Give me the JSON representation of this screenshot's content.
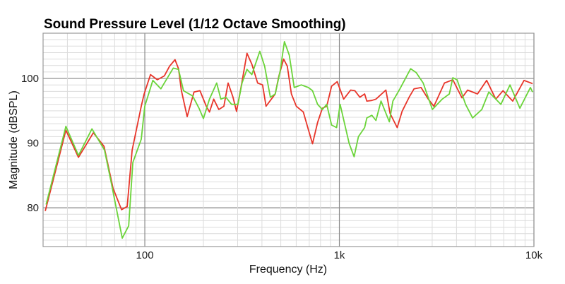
{
  "chart_data": {
    "type": "line",
    "title": "Sound Pressure Level (1/12 Octave Smoothing)",
    "xlabel": "Frequency (Hz)",
    "ylabel": "Magnitude (dBSPL)",
    "xscale": "log",
    "xlim": [
      30,
      10000
    ],
    "ylim": [
      74,
      107
    ],
    "grid": true,
    "x_ticks": [
      {
        "value": 100,
        "label": "100"
      },
      {
        "value": 1000,
        "label": "1k"
      },
      {
        "value": 10000,
        "label": "10k"
      }
    ],
    "y_ticks": [
      {
        "value": 80,
        "label": "80"
      },
      {
        "value": 90,
        "label": "90"
      },
      {
        "value": 100,
        "label": "100"
      }
    ],
    "series": [
      {
        "name": "red",
        "color": "#e8352a",
        "points": [
          [
            30.8,
            79.5
          ],
          [
            39.3,
            92.0
          ],
          [
            45.6,
            87.8
          ],
          [
            54.4,
            91.6
          ],
          [
            61.7,
            89.5
          ],
          [
            68.7,
            83.0
          ],
          [
            75.9,
            79.7
          ],
          [
            81.2,
            80.2
          ],
          [
            86.1,
            88.9
          ],
          [
            95.9,
            95.7
          ],
          [
            99.2,
            97.6
          ],
          [
            107,
            100.6
          ],
          [
            116,
            99.8
          ],
          [
            126,
            100.4
          ],
          [
            134,
            101.9
          ],
          [
            143,
            102.9
          ],
          [
            149,
            101.5
          ],
          [
            154,
            98.2
          ],
          [
            165,
            94.1
          ],
          [
            179,
            97.9
          ],
          [
            192,
            98.1
          ],
          [
            207,
            95.7
          ],
          [
            215,
            94.8
          ],
          [
            226,
            96.8
          ],
          [
            240,
            95.2
          ],
          [
            255,
            95.7
          ],
          [
            268,
            99.3
          ],
          [
            284,
            97.1
          ],
          [
            296,
            94.9
          ],
          [
            314,
            99.0
          ],
          [
            335,
            103.9
          ],
          [
            355,
            102.2
          ],
          [
            380,
            99.3
          ],
          [
            403,
            99.0
          ],
          [
            420,
            95.7
          ],
          [
            442,
            96.6
          ],
          [
            468,
            97.6
          ],
          [
            488,
            100.3
          ],
          [
            517,
            103.0
          ],
          [
            540,
            101.9
          ],
          [
            567,
            97.6
          ],
          [
            601,
            95.7
          ],
          [
            653,
            94.8
          ],
          [
            693,
            92.1
          ],
          [
            728,
            89.9
          ],
          [
            773,
            93.2
          ],
          [
            818,
            95.4
          ],
          [
            861,
            95.7
          ],
          [
            912,
            98.8
          ],
          [
            975,
            99.5
          ],
          [
            1052,
            96.8
          ],
          [
            1143,
            98.2
          ],
          [
            1202,
            98.1
          ],
          [
            1274,
            97.1
          ],
          [
            1349,
            97.6
          ],
          [
            1384,
            96.5
          ],
          [
            1468,
            96.6
          ],
          [
            1542,
            96.8
          ],
          [
            1734,
            98.2
          ],
          [
            1822,
            94.6
          ],
          [
            1982,
            92.4
          ],
          [
            2100,
            94.9
          ],
          [
            2284,
            97.1
          ],
          [
            2421,
            98.4
          ],
          [
            2630,
            98.6
          ],
          [
            2864,
            96.8
          ],
          [
            3062,
            95.7
          ],
          [
            3467,
            99.3
          ],
          [
            3830,
            99.8
          ],
          [
            4266,
            97.0
          ],
          [
            4560,
            98.2
          ],
          [
            5129,
            97.6
          ],
          [
            5715,
            99.7
          ],
          [
            6368,
            96.8
          ],
          [
            6934,
            98.1
          ],
          [
            7780,
            96.5
          ],
          [
            8892,
            99.7
          ],
          [
            9840,
            99.2
          ]
        ]
      },
      {
        "name": "green",
        "color": "#6bd43a",
        "points": [
          [
            31.1,
            80.5
          ],
          [
            39.3,
            92.6
          ],
          [
            45.6,
            88.1
          ],
          [
            53.5,
            92.2
          ],
          [
            62.1,
            88.9
          ],
          [
            67.0,
            84.1
          ],
          [
            72.8,
            78.6
          ],
          [
            76.6,
            75.3
          ],
          [
            82.6,
            77.2
          ],
          [
            86.8,
            87.0
          ],
          [
            95.9,
            90.6
          ],
          [
            100,
            95.7
          ],
          [
            110,
            99.7
          ],
          [
            121,
            98.4
          ],
          [
            140,
            101.6
          ],
          [
            149,
            101.4
          ],
          [
            158,
            98.1
          ],
          [
            176,
            97.3
          ],
          [
            190,
            95.4
          ],
          [
            200,
            93.8
          ],
          [
            215,
            96.8
          ],
          [
            234,
            99.3
          ],
          [
            246,
            96.8
          ],
          [
            261,
            97.1
          ],
          [
            279,
            96.0
          ],
          [
            301,
            96.0
          ],
          [
            316,
            99.3
          ],
          [
            335,
            101.4
          ],
          [
            355,
            100.6
          ],
          [
            390,
            104.2
          ],
          [
            413,
            101.9
          ],
          [
            442,
            97.1
          ],
          [
            468,
            97.6
          ],
          [
            496,
            101.1
          ],
          [
            522,
            105.7
          ],
          [
            553,
            103.6
          ],
          [
            586,
            98.6
          ],
          [
            637,
            99.0
          ],
          [
            693,
            98.6
          ],
          [
            728,
            98.1
          ],
          [
            773,
            96.0
          ],
          [
            818,
            95.2
          ],
          [
            861,
            96.0
          ],
          [
            912,
            92.8
          ],
          [
            968,
            92.4
          ],
          [
            1009,
            96.0
          ],
          [
            1060,
            93.2
          ],
          [
            1124,
            89.9
          ],
          [
            1191,
            87.9
          ],
          [
            1253,
            91.0
          ],
          [
            1349,
            92.4
          ],
          [
            1384,
            93.9
          ],
          [
            1468,
            94.3
          ],
          [
            1542,
            93.5
          ],
          [
            1637,
            96.5
          ],
          [
            1807,
            93.3
          ],
          [
            1884,
            96.5
          ],
          [
            2049,
            98.4
          ],
          [
            2323,
            101.5
          ],
          [
            2483,
            100.9
          ],
          [
            2697,
            99.3
          ],
          [
            3006,
            95.2
          ],
          [
            3379,
            96.8
          ],
          [
            3673,
            97.6
          ],
          [
            3830,
            100.1
          ],
          [
            4027,
            99.8
          ],
          [
            4452,
            96.0
          ],
          [
            4842,
            93.9
          ],
          [
            5395,
            95.2
          ],
          [
            5864,
            97.9
          ],
          [
            6368,
            96.8
          ],
          [
            6761,
            96.0
          ],
          [
            7534,
            99.0
          ],
          [
            8466,
            95.4
          ],
          [
            9587,
            98.6
          ],
          [
            9840,
            97.9
          ]
        ]
      }
    ]
  }
}
